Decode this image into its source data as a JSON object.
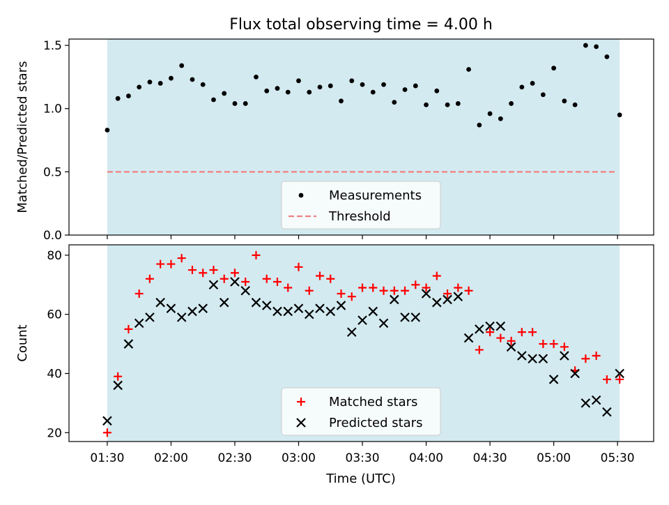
{
  "chart_data": {
    "title": "Flux total observing time = 4.00 h",
    "xlabel": "Time (UTC)",
    "x_tick_labels": [
      "01:30",
      "02:00",
      "02:30",
      "03:00",
      "03:30",
      "04:00",
      "04:30",
      "05:00",
      "05:30"
    ],
    "x_tick_minutes": [
      90,
      120,
      150,
      180,
      210,
      240,
      270,
      300,
      330
    ],
    "xlim_minutes": [
      72,
      347
    ],
    "shade_range_minutes": [
      90,
      331
    ],
    "colors": {
      "shade": "#d3eaf0",
      "measurement": "#000000",
      "threshold": "#f08080",
      "matched": "#ff0000",
      "predicted": "#000000"
    },
    "panels": [
      {
        "type": "scatter",
        "ylabel": "Matched/Predicted stars",
        "ylim": [
          0,
          1.55
        ],
        "yticks": [
          0.0,
          0.5,
          1.0,
          1.5
        ],
        "ytick_labels": [
          "0.0",
          "0.5",
          "1.0",
          "1.5"
        ],
        "threshold": 0.5,
        "legend": [
          "Measurements",
          "Threshold"
        ],
        "legend_position": "lower center",
        "x_minutes": [
          90,
          95,
          100,
          105,
          110,
          115,
          120,
          125,
          130,
          135,
          140,
          145,
          150,
          155,
          160,
          165,
          170,
          175,
          180,
          185,
          190,
          195,
          200,
          205,
          210,
          215,
          220,
          225,
          230,
          235,
          240,
          245,
          250,
          255,
          260,
          265,
          270,
          275,
          280,
          285,
          290,
          295,
          300,
          305,
          310,
          315,
          320,
          325,
          331
        ],
        "series": [
          {
            "name": "Measurements",
            "values": [
              0.83,
              1.08,
              1.1,
              1.17,
              1.21,
              1.2,
              1.24,
              1.34,
              1.23,
              1.19,
              1.07,
              1.12,
              1.04,
              1.04,
              1.25,
              1.14,
              1.16,
              1.13,
              1.22,
              1.13,
              1.17,
              1.18,
              1.06,
              1.22,
              1.19,
              1.13,
              1.19,
              1.05,
              1.15,
              1.18,
              1.03,
              1.14,
              1.03,
              1.04,
              1.31,
              0.87,
              0.96,
              0.92,
              1.04,
              1.17,
              1.2,
              1.11,
              1.32,
              1.06,
              1.03,
              1.5,
              1.49,
              1.41,
              0.95
            ]
          }
        ]
      },
      {
        "type": "scatter",
        "ylabel": "Count",
        "ylim": [
          17,
          83.5
        ],
        "yticks": [
          20,
          40,
          60,
          80
        ],
        "ytick_labels": [
          "20",
          "40",
          "60",
          "80"
        ],
        "legend": [
          "Matched stars",
          "Predicted stars"
        ],
        "legend_position": "lower center",
        "x_minutes": [
          90,
          95,
          100,
          105,
          110,
          115,
          120,
          125,
          130,
          135,
          140,
          145,
          150,
          155,
          160,
          165,
          170,
          175,
          180,
          185,
          190,
          195,
          200,
          205,
          210,
          215,
          220,
          225,
          230,
          235,
          240,
          245,
          250,
          255,
          260,
          265,
          270,
          275,
          280,
          285,
          290,
          295,
          300,
          305,
          310,
          315,
          320,
          325,
          331
        ],
        "series": [
          {
            "name": "Matched stars",
            "marker": "plus",
            "values": [
              20,
              39,
              55,
              67,
              72,
              77,
              77,
              79,
              75,
              74,
              75,
              72,
              74,
              71,
              80,
              72,
              71,
              69,
              76,
              68,
              73,
              72,
              67,
              66,
              69,
              69,
              68,
              68,
              68,
              70,
              69,
              73,
              67,
              69,
              68,
              48,
              54,
              52,
              51,
              54,
              54,
              50,
              50,
              49,
              41,
              45,
              46,
              38,
              38
            ]
          },
          {
            "name": "Predicted stars",
            "marker": "x",
            "values": [
              24,
              36,
              50,
              57,
              59,
              64,
              62,
              59,
              61,
              62,
              70,
              64,
              71,
              68,
              64,
              63,
              61,
              61,
              62,
              60,
              62,
              61,
              63,
              54,
              58,
              61,
              57,
              65,
              59,
              59,
              67,
              64,
              65,
              66,
              52,
              55,
              56,
              56,
              49,
              46,
              45,
              45,
              38,
              46,
              40,
              30,
              31,
              27,
              40
            ]
          }
        ]
      }
    ]
  }
}
